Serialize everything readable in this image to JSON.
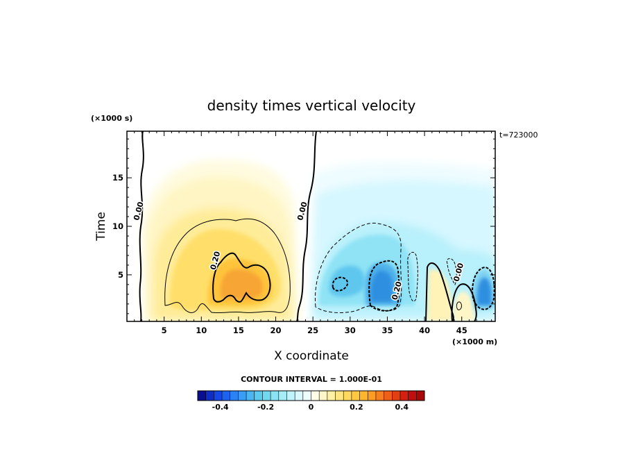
{
  "chart_data": {
    "type": "heatmap",
    "title": "density times vertical velocity",
    "xlabel": "X coordinate",
    "ylabel": "Time",
    "x_unit": "(×1000 m)",
    "y_unit": "(×1000 s)",
    "time_stamp": "t=723000",
    "xlim": [
      0,
      49.5
    ],
    "ylim": [
      0.2,
      19.8
    ],
    "xticks": [
      5,
      10,
      15,
      20,
      25,
      30,
      35,
      40,
      45
    ],
    "yticks": [
      5,
      10,
      15
    ],
    "contour_interval_text": "CONTOUR INTERVAL = 1.000E-01",
    "contour_labels": [
      {
        "text": "0.00",
        "x": 1.9,
        "y": 11.5
      },
      {
        "text": "0.00",
        "x": 23.9,
        "y": 11.5
      },
      {
        "text": "0.20",
        "x": 12.2,
        "y": 6.4
      },
      {
        "text": "0.20",
        "x": 36.6,
        "y": 3.3
      },
      {
        "text": "0.00",
        "x": 44.9,
        "y": 5.2
      }
    ],
    "regions": [
      {
        "sign": "positive",
        "x_range": [
          2,
          23
        ],
        "peak_value": 0.3,
        "peak_at": [
          15.5,
          4.5
        ]
      },
      {
        "sign": "negative",
        "x_range": [
          24,
          49.5
        ],
        "peak_value": -0.35,
        "peak_at": [
          34,
          4
        ]
      }
    ],
    "colorbar": {
      "vmin": -0.5,
      "vmax": 0.5,
      "ticks": [
        "-0.4",
        "-0.2",
        "0",
        "0.2",
        "0.4"
      ],
      "tick_values": [
        -0.4,
        -0.2,
        0,
        0.2,
        0.4
      ]
    }
  }
}
